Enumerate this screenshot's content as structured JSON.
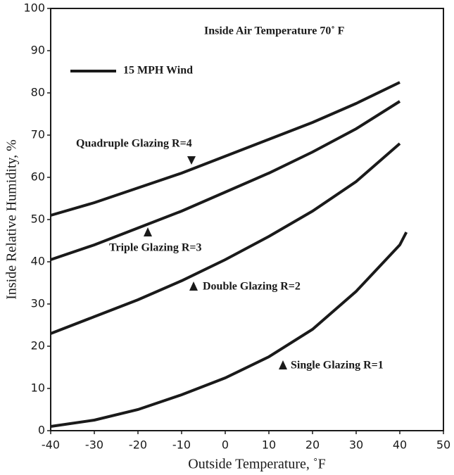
{
  "chart_data": {
    "type": "line",
    "title": "Inside Air Temperature 70˚ F",
    "legend_label": "15 MPH Wind",
    "x_label": "Outside Temperature, ˚F",
    "y_label": "Inside Relative Humidity, %",
    "xlim": [
      -40,
      50
    ],
    "ylim": [
      0,
      100
    ],
    "xticks": [
      -40,
      -30,
      -20,
      -10,
      0,
      10,
      20,
      30,
      40,
      50
    ],
    "yticks": [
      0,
      10,
      20,
      30,
      40,
      50,
      60,
      70,
      80,
      90,
      100
    ],
    "grid": false,
    "series": [
      {
        "name": "Quadruple Glazing R=4",
        "color": "#1a1a1a",
        "x": [
          -40,
          -30,
          -20,
          -10,
          0,
          10,
          20,
          30,
          40
        ],
        "values": [
          51,
          54,
          57.5,
          61,
          65,
          69,
          73,
          77.5,
          82.5
        ]
      },
      {
        "name": "Triple Glazing R=3",
        "color": "#1a1a1a",
        "x": [
          -40,
          -30,
          -20,
          -10,
          0,
          10,
          20,
          30,
          40
        ],
        "values": [
          40.5,
          44,
          48,
          52,
          56.5,
          61,
          66,
          71.5,
          78
        ]
      },
      {
        "name": "Double Glazing R=2",
        "color": "#1a1a1a",
        "x": [
          -40,
          -30,
          -20,
          -10,
          0,
          10,
          20,
          30,
          40
        ],
        "values": [
          23,
          27,
          31,
          35.5,
          40.5,
          46,
          52,
          59,
          68
        ]
      },
      {
        "name": "Single Glazing R=1",
        "color": "#1a1a1a",
        "x": [
          -40,
          -30,
          -20,
          -10,
          0,
          10,
          20,
          30,
          40,
          41.5
        ],
        "values": [
          1,
          2.5,
          5,
          8.5,
          12.5,
          17.5,
          24,
          33,
          44,
          47
        ]
      }
    ]
  }
}
